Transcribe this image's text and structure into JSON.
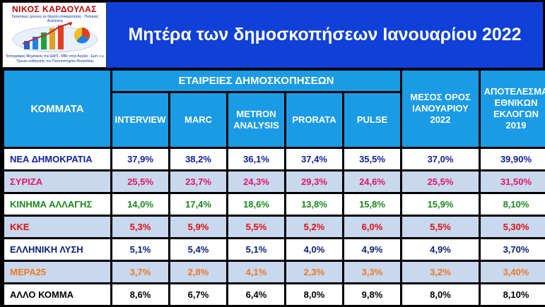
{
  "logo": {
    "name": "ΝΙΚΟΣ ΚΑΡΔΟΥΛΑΣ",
    "subtitle": "Στατιστικές έρευνες σε θέματα επικαιρότητας - Πολιτικές Αναλύσεις",
    "footer_line1": "Τοπογράφος Μηχανικός του ΕΜΠ - MBc στην Αγγλία - Εμπ. ε.ε.",
    "footer_line2": "Πρώην καθηγητής του Πανεπιστημίου Θεσσαλίας"
  },
  "title": "Μητέρα των δημοσκοπήσεων Ιανουαρίου 2022",
  "headers": {
    "parties": "ΚΟΜΜΑΤΑ",
    "companies_group": "ΕΤΑΙΡΕΙΕΣ ΔΗΜΟΣΚΟΠΗΣΕΩΝ",
    "companies": [
      {
        "line1": "INTERVIEW",
        "line2": ""
      },
      {
        "line1": "MARC",
        "line2": ""
      },
      {
        "line1": "METRON",
        "line2": "ANALYSIS"
      },
      {
        "line1": "PRORATA",
        "line2": ""
      },
      {
        "line1": "PULSE",
        "line2": ""
      }
    ],
    "average": {
      "line1": "ΜΕΣΟΣ ΟΡΟΣ",
      "line2": "ΙΑΝΟΥΑΡΙΟΥ",
      "line3": "2022"
    },
    "election": {
      "line1": "ΑΠΟΤΕΛΕΣΜΑ",
      "line2": "ΕΘΝΙΚΩΝ",
      "line3": "ΕΚΛΟΓΩΝ",
      "line4": "2019"
    }
  },
  "rows": [
    {
      "party": "ΝΕΑ ΔΗΜΟΚΡΑΤΙΑ",
      "color": "#1020a0",
      "values": [
        "37,9%",
        "38,2%",
        "36,1%",
        "37,4%",
        "35,5%"
      ],
      "average": "37,0%",
      "election": "39,90%"
    },
    {
      "party": "ΣΥΡΙΖΑ",
      "color": "#e0186a",
      "values": [
        "25,5%",
        "23,7%",
        "24,3%",
        "29,3%",
        "24,6%"
      ],
      "average": "25,5%",
      "election": "31,50%"
    },
    {
      "party": "ΚΙΝΗΜΑ ΑΛΛΑΓΗΣ",
      "color": "#1a8a1a",
      "values": [
        "14,0%",
        "17,4%",
        "18,6%",
        "13,8%",
        "15,8%"
      ],
      "average": "15,9%",
      "election": "8,10%"
    },
    {
      "party": "ΚΚΕ",
      "color": "#e01010",
      "values": [
        "5,3%",
        "5,9%",
        "5,5%",
        "5,2%",
        "6,0%"
      ],
      "average": "5,5%",
      "election": "5,30%"
    },
    {
      "party": "ΕΛΛΗΝΙΚΗ ΛΥΣΗ",
      "color": "#0a1e78",
      "values": [
        "5,1%",
        "5,4%",
        "5,1%",
        "4,0%",
        "4,9%"
      ],
      "average": "4,9%",
      "election": "3,70%"
    },
    {
      "party": "ΜΕΡΑ25",
      "color": "#f07820",
      "values": [
        "3,7%",
        "2,8%",
        "4,1%",
        "2,3%",
        "3,3%"
      ],
      "average": "3,2%",
      "election": "3,40%"
    },
    {
      "party": "ΑΛΛΟ ΚΟΜΜΑ",
      "color": "#000000",
      "values": [
        "8,6%",
        "6,7%",
        "6,4%",
        "8,0%",
        "9,8%"
      ],
      "average": "8,0%",
      "election": "8,10%"
    }
  ]
}
